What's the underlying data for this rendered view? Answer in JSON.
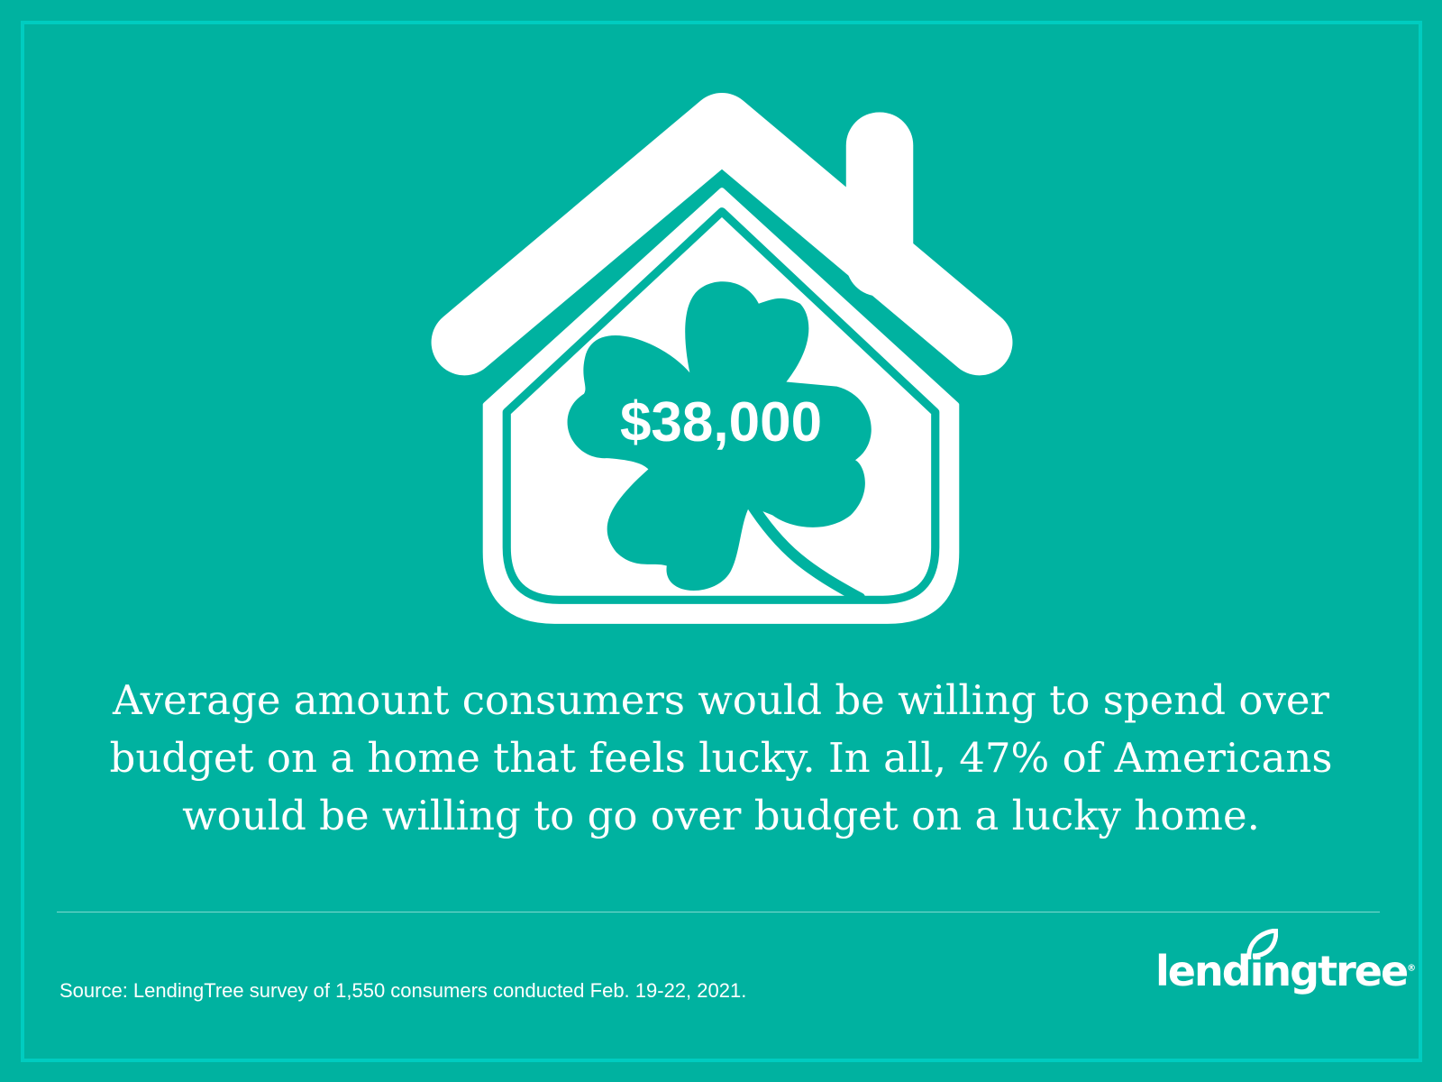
{
  "colors": {
    "background": "#00b2a0",
    "border": "#00ccc0",
    "foreground": "#ffffff"
  },
  "headline_amount": "$38,000",
  "caption": "Average amount consumers would be willing to spend over budget on a home that feels lucky. In all, 47% of Americans would be willing to go over budget on a lucky home.",
  "source": "Source: LendingTree survey of 1,550 consumers conducted Feb. 19-22, 2021.",
  "logo": {
    "text": "lendingtree",
    "icon": "leaf-icon"
  },
  "illustration": {
    "icons": [
      "house-icon",
      "clover-icon"
    ]
  }
}
